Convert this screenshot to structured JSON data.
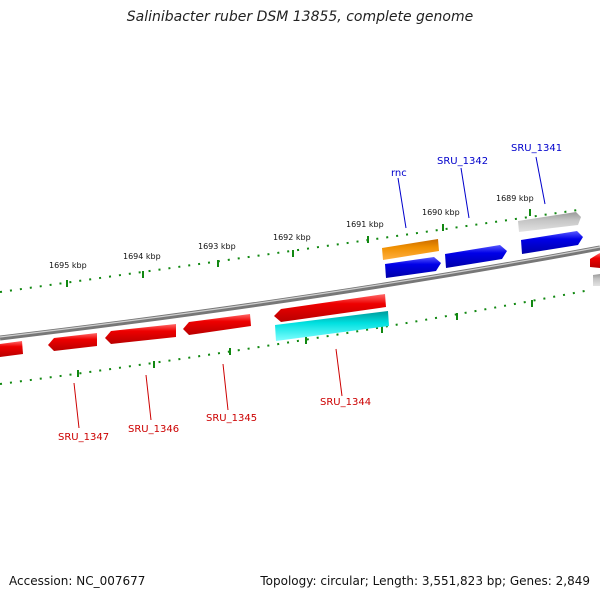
{
  "title": "Salinibacter ruber DSM 13855, complete genome",
  "footer": {
    "accession": "Accession: NC_007677",
    "stats": "Topology: circular; Length: 3,551,823 bp; Genes: 2,849"
  },
  "colors": {
    "plus_cds": "#0000e8",
    "minus_cds": "#ee0000",
    "rna": "#f08c00",
    "pseudo": "#b8b8b8",
    "paired": "#00e0e0",
    "ring": "#888888",
    "ticks": "#118811"
  },
  "scale": {
    "ticks": [
      {
        "label": "1689 kbp"
      },
      {
        "label": "1690 kbp"
      },
      {
        "label": "1691 kbp"
      },
      {
        "label": "1692 kbp"
      },
      {
        "label": "1693 kbp"
      },
      {
        "label": "1694 kbp"
      },
      {
        "label": "1695 kbp"
      }
    ]
  },
  "labels": {
    "rnc": "rnc",
    "sru1342": "SRU_1342",
    "sru1341": "SRU_1341",
    "sru1344": "SRU_1344",
    "sru1345": "SRU_1345",
    "sru1346": "SRU_1346",
    "sru1347": "SRU_1347"
  }
}
